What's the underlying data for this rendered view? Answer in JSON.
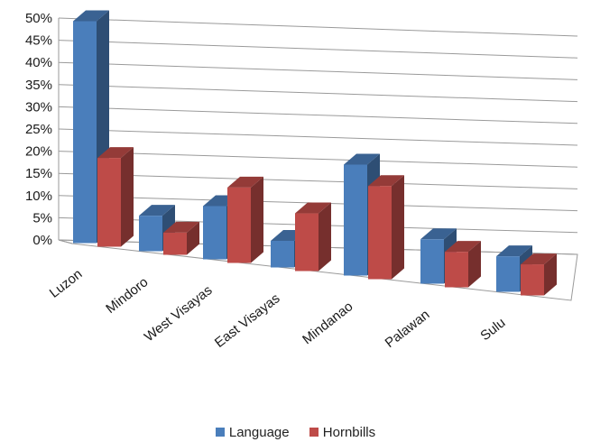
{
  "chart_data": {
    "type": "bar",
    "categories": [
      "Luzon",
      "Mindoro",
      "West Visayas",
      "East Visayas",
      "Mindanao",
      "Palawan",
      "Sulu"
    ],
    "series": [
      {
        "name": "Language",
        "values": [
          50,
          8,
          12,
          6,
          25,
          10,
          8
        ],
        "color": "#4a7ebb"
      },
      {
        "name": "Hornbills",
        "values": [
          20,
          5,
          17,
          13,
          21,
          8,
          7
        ],
        "color": "#be4b48"
      }
    ],
    "title": "",
    "xlabel": "",
    "ylabel": "",
    "ylim": [
      0,
      50
    ],
    "yticks": [
      "0%",
      "5%",
      "10%",
      "15%",
      "20%",
      "25%",
      "30%",
      "35%",
      "40%",
      "45%",
      "50%"
    ],
    "grid": true,
    "legend": "bottom",
    "style": "3d-clustered-column"
  }
}
